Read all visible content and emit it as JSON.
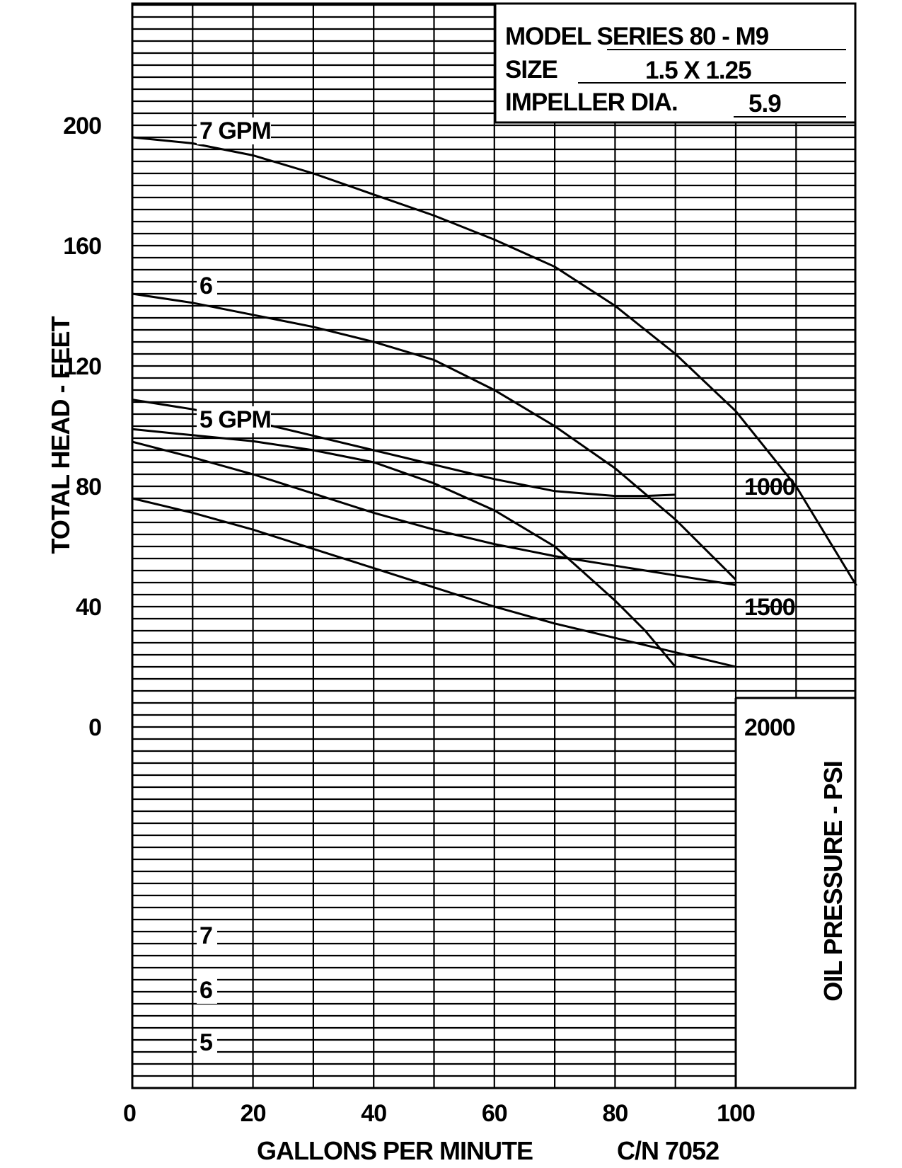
{
  "chart_data": {
    "type": "line",
    "info": {
      "model_label": "MODEL SERIES 80 - M9",
      "size_label": "SIZE",
      "size_value": "1.5 X 1.25",
      "impeller_label": "IMPELLER DIA.",
      "impeller_value": "5.9"
    },
    "xlabel": "GALLONS PER MINUTE",
    "catalog_number": "C/N 7052",
    "ylabel_left": "TOTAL HEAD - FEET",
    "ylabel_right": "OIL PRESSURE - PSI",
    "x_ticks": [
      "0",
      "20",
      "40",
      "60",
      "80",
      "100"
    ],
    "head_ticks": [
      "0",
      "40",
      "80",
      "120",
      "160",
      "200"
    ],
    "pressure_ticks": [
      "1000",
      "1500",
      "2000"
    ],
    "xlim": [
      0,
      120
    ],
    "head_ylim": [
      0,
      240
    ],
    "pressure_ylim": [
      500,
      2000
    ],
    "grid": true,
    "head_series": [
      {
        "name": "7 GPM",
        "label": "7 GPM",
        "x": [
          0,
          10,
          20,
          30,
          40,
          50,
          60,
          70,
          80,
          90,
          100,
          110,
          120
        ],
        "values": [
          196,
          194,
          190,
          184,
          177,
          170,
          162,
          153,
          140,
          124,
          105,
          80,
          47
        ]
      },
      {
        "name": "6",
        "label": "6",
        "x": [
          0,
          10,
          20,
          30,
          40,
          50,
          60,
          70,
          80,
          90,
          100
        ],
        "values": [
          144,
          141,
          137,
          133,
          128,
          122,
          112,
          100,
          86,
          69,
          49
        ]
      },
      {
        "name": "5 GPM",
        "label": "5 GPM",
        "x": [
          0,
          10,
          20,
          30,
          40,
          50,
          60,
          70,
          80,
          85,
          90
        ],
        "values": [
          99,
          97,
          95,
          92,
          88,
          81,
          72,
          60,
          42,
          32,
          20
        ]
      }
    ],
    "pressure_series": [
      {
        "name": "7",
        "label": "7",
        "x": [
          0,
          10,
          20,
          30,
          40,
          50,
          60,
          70,
          80,
          90,
          100
        ],
        "values": [
          1050,
          1110,
          1180,
          1260,
          1340,
          1420,
          1500,
          1570,
          1630,
          1690,
          1750
        ]
      },
      {
        "name": "6",
        "label": "6",
        "x": [
          0,
          10,
          20,
          30,
          40,
          50,
          60,
          70,
          80,
          90,
          100
        ],
        "values": [
          815,
          880,
          950,
          1030,
          1110,
          1180,
          1240,
          1290,
          1330,
          1370,
          1410
        ]
      },
      {
        "name": "5",
        "label": "5",
        "x": [
          0,
          10,
          20,
          30,
          40,
          50,
          60,
          70,
          80,
          85,
          90
        ],
        "values": [
          640,
          680,
          730,
          790,
          850,
          910,
          970,
          1020,
          1040,
          1040,
          1035
        ]
      }
    ]
  }
}
